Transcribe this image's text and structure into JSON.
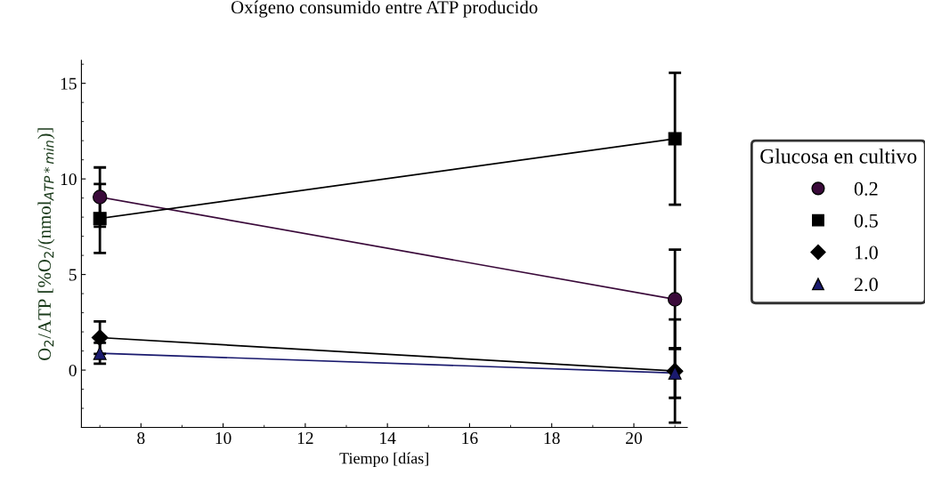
{
  "chart_data": {
    "type": "line",
    "title": "Oxígeno consumido entre ATP producido",
    "xlabel": "Tiempo [días]",
    "ylabel": "O$_{2}$/ATP [%O$_{2}$/(nmol$_{ATP*min}$)]",
    "legend_title": "Glucosa en cultivo",
    "legend": "right",
    "x": [
      7,
      21
    ],
    "series": [
      {
        "name": "0.2",
        "color": "#3a0a3a",
        "values": [
          9.05,
          3.7
        ],
        "errors": [
          1.55,
          2.6
        ],
        "marker": "circle"
      },
      {
        "name": "0.5",
        "color": "#000000",
        "values": [
          7.93,
          12.1
        ],
        "errors": [
          1.8,
          3.45
        ],
        "marker": "square"
      },
      {
        "name": "1.0",
        "color": "#000000",
        "values": [
          1.7,
          -0.05
        ],
        "errors": [
          0.85,
          2.7
        ],
        "marker": "diamond"
      },
      {
        "name": "2.0",
        "color": "#1a1a6e",
        "values": [
          0.88,
          -0.15
        ],
        "errors": [
          0.55,
          1.3
        ],
        "marker": "triangle"
      }
    ],
    "xlim": [
      6.55,
      21.3
    ],
    "xticks": [
      8,
      10,
      12,
      14,
      16,
      18,
      20
    ],
    "ylim": [
      -3.0,
      16.2
    ],
    "yticks": [
      0,
      5,
      10,
      15
    ],
    "grid": false
  }
}
